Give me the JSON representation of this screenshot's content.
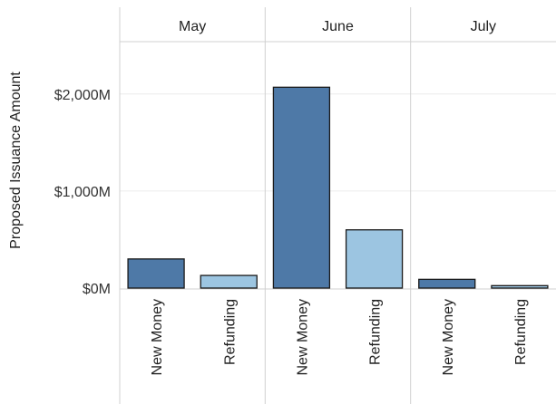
{
  "chart_data": {
    "type": "bar",
    "ylabel": "Proposed Issuance Amount",
    "ylim": [
      0,
      2500
    ],
    "yticks": [
      {
        "value": 0,
        "label": "$0M"
      },
      {
        "value": 1000,
        "label": "$1,000M"
      },
      {
        "value": 2000,
        "label": "$2,000M"
      }
    ],
    "panels": [
      {
        "name": "May",
        "categories": [
          "New Money",
          "Refunding"
        ],
        "values": [
          300,
          130
        ]
      },
      {
        "name": "June",
        "categories": [
          "New Money",
          "Refunding"
        ],
        "values": [
          2070,
          600
        ]
      },
      {
        "name": "July",
        "categories": [
          "New Money",
          "Refunding"
        ],
        "values": [
          90,
          25
        ]
      }
    ],
    "colors": {
      "New Money": "#4e79a7",
      "Refunding": "#9cc5e1"
    },
    "grid": true,
    "legend": "none"
  }
}
